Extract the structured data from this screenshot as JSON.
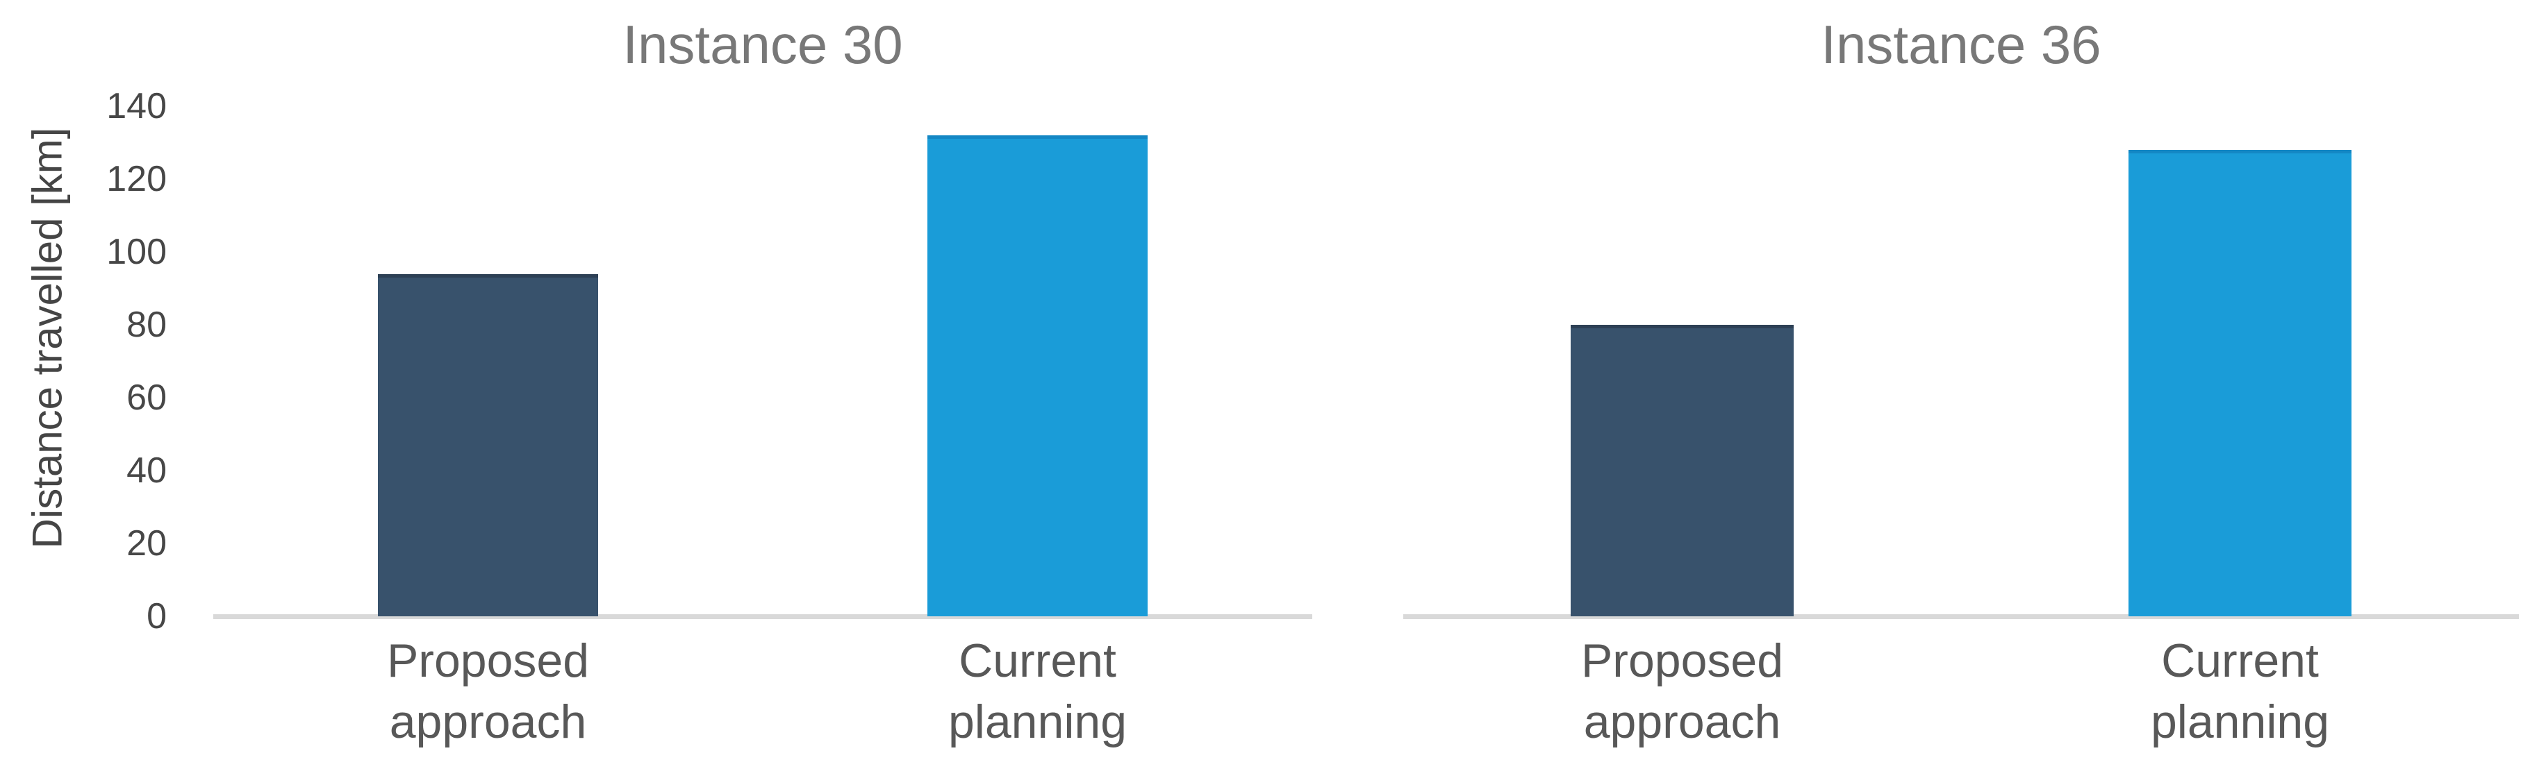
{
  "chart_data": [
    {
      "type": "bar",
      "title": "Instance 30",
      "categories": [
        "Proposed approach",
        "Current planning"
      ],
      "values": [
        94,
        132
      ],
      "xlabel": "",
      "ylabel": "Distance travelled [km]",
      "ylim": [
        0,
        140
      ],
      "yticks": [
        0,
        20,
        40,
        60,
        80,
        100,
        120,
        140
      ],
      "grid": false,
      "legend_position": "none",
      "bar_colors": [
        "#38526c",
        "#1a9cd8"
      ]
    },
    {
      "type": "bar",
      "title": "Instance 36",
      "categories": [
        "Proposed approach",
        "Current planning"
      ],
      "values": [
        80,
        128
      ],
      "xlabel": "",
      "ylabel": "",
      "ylim": [
        0,
        140
      ],
      "yticks": [],
      "grid": false,
      "legend_position": "none",
      "bar_colors": [
        "#38526c",
        "#1a9cd8"
      ]
    }
  ],
  "colors": {
    "dark_bar": "#38526c",
    "light_bar": "#1a9cd8",
    "axis_line": "#d9d9d9",
    "title_text": "#787878",
    "tick_text": "#474747",
    "category_text": "#585858"
  }
}
